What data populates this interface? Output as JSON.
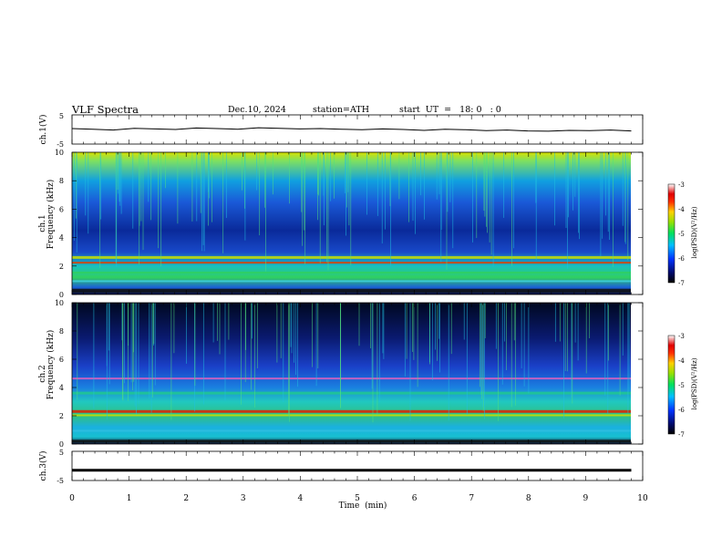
{
  "header": {
    "title": "VLF  Spectra",
    "date": "Dec.10, 2024",
    "station": "station=ATH",
    "start": "start  UT  =   18: 0   : 0"
  },
  "colors": {
    "frame": "#000000",
    "trace": "#000000",
    "spectrogram_background": "#0a2a9a"
  },
  "chart_data": [
    {
      "type": "line",
      "panel": "ch1-waveform",
      "ylabel": "ch.1(V)",
      "ylim": [
        -5,
        5
      ],
      "yticks": [
        "5",
        "-5"
      ],
      "xlim": [
        0,
        10
      ],
      "series": [
        {
          "values": [
            0.3,
            0.1,
            -0.2,
            0.4,
            0.2,
            0.0,
            0.5,
            0.3,
            0.1,
            0.6,
            0.4,
            0.2,
            0.3,
            0.1,
            -0.1,
            0.2,
            0.0,
            -0.3,
            0.1,
            -0.1,
            -0.4,
            -0.2,
            -0.5,
            -0.6,
            -0.3,
            -0.4,
            -0.2,
            -0.5
          ]
        }
      ]
    },
    {
      "type": "heatmap",
      "panel": "ch1-spectrogram",
      "ylabel_top": "ch.1",
      "ylabel": "Frequency  (kHz)",
      "ylim": [
        0,
        10
      ],
      "yticks": [
        "0",
        "2",
        "4",
        "6",
        "8",
        "10"
      ],
      "xlim": [
        0,
        10
      ],
      "colorbar": {
        "label": "log(PSD)(V²/Hz)",
        "range": [
          -7,
          -3
        ],
        "ticks": [
          "-3",
          "-4",
          "-5",
          "-6",
          "-7"
        ]
      }
    },
    {
      "type": "heatmap",
      "panel": "ch2-spectrogram",
      "ylabel_top": "ch.2",
      "ylabel": "Frequency  (kHz)",
      "ylim": [
        0,
        10
      ],
      "yticks": [
        "0",
        "2",
        "4",
        "6",
        "8",
        "10"
      ],
      "xlim": [
        0,
        10
      ],
      "colorbar": {
        "label": "log(PSD)(V²/Hz)",
        "range": [
          -7,
          -3
        ],
        "ticks": [
          "-3",
          "-4",
          "-5",
          "-6",
          "-7"
        ]
      }
    },
    {
      "type": "line",
      "panel": "ch3-waveform",
      "ylabel": "ch.3(V)",
      "ylim": [
        -5,
        5
      ],
      "yticks": [
        "5",
        "-5"
      ],
      "xlim": [
        0,
        10
      ],
      "series": [
        {
          "values": [
            -1.5,
            -1.5,
            -1.5,
            -1.5,
            -1.5,
            -1.5,
            -1.5,
            -1.5,
            -1.5,
            -1.5,
            -1.5,
            -1.5,
            -1.5,
            -1.5,
            -1.5,
            -1.5,
            -1.5,
            -1.5,
            -1.5,
            -1.5,
            -1.5,
            -1.5,
            -1.5,
            -1.5,
            -1.5,
            -1.5,
            -1.5,
            -1.5
          ]
        }
      ]
    }
  ],
  "x_axis": {
    "label": "Time  (min)",
    "ticks": [
      "0",
      "1",
      "2",
      "3",
      "4",
      "5",
      "6",
      "7",
      "8",
      "9",
      "10"
    ],
    "range": [
      0,
      10
    ],
    "data_end": 9.8
  }
}
